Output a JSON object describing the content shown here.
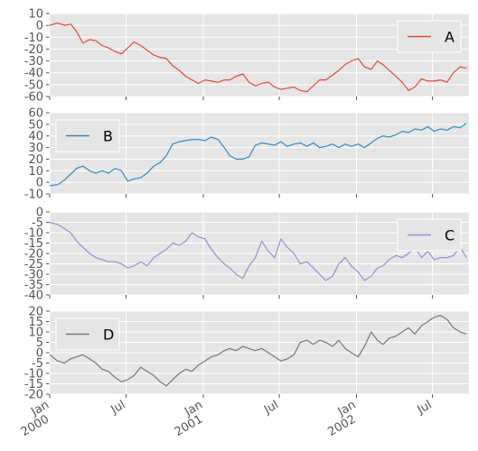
{
  "chart_data": {
    "type": "line",
    "layout": "4 stacked panels sharing a date x-axis",
    "style": {
      "background": "#e5e5e5",
      "grid": true,
      "grid_color": "#ffffff"
    },
    "x_range": [
      "2000-01-01",
      "2002-09-26"
    ],
    "x_ticks": [
      {
        "date": "2000-01-01",
        "label": "Jan",
        "sub": "2000"
      },
      {
        "date": "2000-07-01",
        "label": "Jul",
        "sub": ""
      },
      {
        "date": "2001-01-01",
        "label": "Jan",
        "sub": "2001"
      },
      {
        "date": "2001-07-01",
        "label": "Jul",
        "sub": ""
      },
      {
        "date": "2002-01-01",
        "label": "Jan",
        "sub": "2002"
      },
      {
        "date": "2002-07-01",
        "label": "Jul",
        "sub": ""
      }
    ],
    "panels": [
      {
        "name": "A",
        "color": "#e24a33",
        "legend": "top-right",
        "ylim": [
          -60,
          10
        ],
        "yticks": [
          10,
          0,
          -10,
          -20,
          -30,
          -40,
          -50,
          -60
        ],
        "points": [
          [
            "2000-01-01",
            0
          ],
          [
            "2000-01-20",
            2
          ],
          [
            "2000-02-05",
            0
          ],
          [
            "2000-02-20",
            1
          ],
          [
            "2000-03-05",
            -5
          ],
          [
            "2000-03-20",
            -15
          ],
          [
            "2000-04-05",
            -12
          ],
          [
            "2000-04-20",
            -13
          ],
          [
            "2000-05-05",
            -17
          ],
          [
            "2000-05-20",
            -19
          ],
          [
            "2000-06-05",
            -22
          ],
          [
            "2000-06-20",
            -24
          ],
          [
            "2000-07-05",
            -19
          ],
          [
            "2000-07-20",
            -14
          ],
          [
            "2000-08-05",
            -17
          ],
          [
            "2000-08-20",
            -21
          ],
          [
            "2000-09-05",
            -25
          ],
          [
            "2000-09-20",
            -27
          ],
          [
            "2000-10-05",
            -28
          ],
          [
            "2000-10-20",
            -34
          ],
          [
            "2000-11-05",
            -38
          ],
          [
            "2000-11-20",
            -43
          ],
          [
            "2000-12-05",
            -46
          ],
          [
            "2000-12-20",
            -49
          ],
          [
            "2001-01-05",
            -46
          ],
          [
            "2001-01-20",
            -47
          ],
          [
            "2001-02-05",
            -48
          ],
          [
            "2001-02-20",
            -46
          ],
          [
            "2001-03-05",
            -46
          ],
          [
            "2001-03-20",
            -43
          ],
          [
            "2001-04-05",
            -41
          ],
          [
            "2001-04-20",
            -48
          ],
          [
            "2001-05-05",
            -51
          ],
          [
            "2001-05-20",
            -49
          ],
          [
            "2001-06-05",
            -48
          ],
          [
            "2001-06-20",
            -52
          ],
          [
            "2001-07-05",
            -54
          ],
          [
            "2001-07-20",
            -53
          ],
          [
            "2001-08-05",
            -52
          ],
          [
            "2001-08-20",
            -55
          ],
          [
            "2001-09-05",
            -56
          ],
          [
            "2001-09-20",
            -51
          ],
          [
            "2001-10-05",
            -46
          ],
          [
            "2001-10-20",
            -46
          ],
          [
            "2001-11-05",
            -42
          ],
          [
            "2001-11-20",
            -38
          ],
          [
            "2001-12-05",
            -33
          ],
          [
            "2001-12-20",
            -30
          ],
          [
            "2002-01-05",
            -28
          ],
          [
            "2002-01-20",
            -35
          ],
          [
            "2002-02-05",
            -37
          ],
          [
            "2002-02-20",
            -30
          ],
          [
            "2002-03-05",
            -33
          ],
          [
            "2002-03-20",
            -38
          ],
          [
            "2002-04-05",
            -43
          ],
          [
            "2002-04-20",
            -48
          ],
          [
            "2002-05-05",
            -55
          ],
          [
            "2002-05-20",
            -52
          ],
          [
            "2002-06-05",
            -45
          ],
          [
            "2002-06-20",
            -47
          ],
          [
            "2002-07-05",
            -47
          ],
          [
            "2002-07-20",
            -46
          ],
          [
            "2002-08-05",
            -48
          ],
          [
            "2002-08-20",
            -40
          ],
          [
            "2002-09-05",
            -35
          ],
          [
            "2002-09-20",
            -36
          ]
        ]
      },
      {
        "name": "B",
        "color": "#348abd",
        "legend": "top-left",
        "ylim": [
          -10,
          60
        ],
        "yticks": [
          60,
          50,
          40,
          30,
          20,
          10,
          0,
          -10
        ],
        "points": [
          [
            "2000-01-01",
            -3
          ],
          [
            "2000-01-20",
            -2
          ],
          [
            "2000-02-05",
            2
          ],
          [
            "2000-02-20",
            7
          ],
          [
            "2000-03-05",
            12
          ],
          [
            "2000-03-20",
            14
          ],
          [
            "2000-04-05",
            10
          ],
          [
            "2000-04-20",
            8
          ],
          [
            "2000-05-05",
            10
          ],
          [
            "2000-05-20",
            8
          ],
          [
            "2000-06-05",
            12
          ],
          [
            "2000-06-20",
            10
          ],
          [
            "2000-07-05",
            1
          ],
          [
            "2000-07-20",
            3
          ],
          [
            "2000-08-05",
            4
          ],
          [
            "2000-08-20",
            8
          ],
          [
            "2000-09-05",
            14
          ],
          [
            "2000-09-20",
            17
          ],
          [
            "2000-10-05",
            23
          ],
          [
            "2000-10-20",
            33
          ],
          [
            "2000-11-05",
            35
          ],
          [
            "2000-11-20",
            36
          ],
          [
            "2000-12-05",
            37
          ],
          [
            "2000-12-20",
            37
          ],
          [
            "2001-01-05",
            36
          ],
          [
            "2001-01-20",
            39
          ],
          [
            "2001-02-05",
            37
          ],
          [
            "2001-02-20",
            30
          ],
          [
            "2001-03-05",
            23
          ],
          [
            "2001-03-20",
            20
          ],
          [
            "2001-04-05",
            20
          ],
          [
            "2001-04-20",
            22
          ],
          [
            "2001-05-05",
            32
          ],
          [
            "2001-05-20",
            34
          ],
          [
            "2001-06-05",
            33
          ],
          [
            "2001-06-20",
            32
          ],
          [
            "2001-07-05",
            35
          ],
          [
            "2001-07-20",
            31
          ],
          [
            "2001-08-05",
            33
          ],
          [
            "2001-08-20",
            34
          ],
          [
            "2001-09-05",
            31
          ],
          [
            "2001-09-20",
            34
          ],
          [
            "2001-10-05",
            30
          ],
          [
            "2001-10-20",
            31
          ],
          [
            "2001-11-05",
            33
          ],
          [
            "2001-11-20",
            30
          ],
          [
            "2001-12-05",
            33
          ],
          [
            "2001-12-20",
            31
          ],
          [
            "2002-01-05",
            33
          ],
          [
            "2002-01-20",
            30
          ],
          [
            "2002-02-05",
            34
          ],
          [
            "2002-02-20",
            38
          ],
          [
            "2002-03-05",
            40
          ],
          [
            "2002-03-20",
            39
          ],
          [
            "2002-04-05",
            41
          ],
          [
            "2002-04-20",
            44
          ],
          [
            "2002-05-05",
            43
          ],
          [
            "2002-05-20",
            46
          ],
          [
            "2002-06-05",
            45
          ],
          [
            "2002-06-20",
            48
          ],
          [
            "2002-07-05",
            44
          ],
          [
            "2002-07-20",
            46
          ],
          [
            "2002-08-05",
            45
          ],
          [
            "2002-08-20",
            48
          ],
          [
            "2002-09-05",
            47
          ],
          [
            "2002-09-20",
            51
          ]
        ]
      },
      {
        "name": "C",
        "color": "#988ed5",
        "legend": "top-right",
        "ylim": [
          -40,
          0
        ],
        "yticks": [
          0,
          -5,
          -10,
          -15,
          -20,
          -25,
          -30,
          -35,
          -40
        ],
        "points": [
          [
            "2000-01-01",
            -5
          ],
          [
            "2000-01-20",
            -6
          ],
          [
            "2000-02-05",
            -8
          ],
          [
            "2000-02-20",
            -10
          ],
          [
            "2000-03-05",
            -14
          ],
          [
            "2000-03-20",
            -17
          ],
          [
            "2000-04-05",
            -20
          ],
          [
            "2000-04-20",
            -22
          ],
          [
            "2000-05-05",
            -23
          ],
          [
            "2000-05-20",
            -24
          ],
          [
            "2000-06-05",
            -24
          ],
          [
            "2000-06-20",
            -25
          ],
          [
            "2000-07-05",
            -27
          ],
          [
            "2000-07-20",
            -26
          ],
          [
            "2000-08-05",
            -24
          ],
          [
            "2000-08-20",
            -26
          ],
          [
            "2000-09-05",
            -22
          ],
          [
            "2000-09-20",
            -20
          ],
          [
            "2000-10-05",
            -18
          ],
          [
            "2000-10-20",
            -15
          ],
          [
            "2000-11-05",
            -16
          ],
          [
            "2000-11-20",
            -14
          ],
          [
            "2000-12-05",
            -10
          ],
          [
            "2000-12-20",
            -12
          ],
          [
            "2001-01-05",
            -13
          ],
          [
            "2001-01-20",
            -18
          ],
          [
            "2001-02-05",
            -22
          ],
          [
            "2001-02-20",
            -25
          ],
          [
            "2001-03-05",
            -27
          ],
          [
            "2001-03-20",
            -30
          ],
          [
            "2001-04-05",
            -32
          ],
          [
            "2001-04-20",
            -26
          ],
          [
            "2001-05-05",
            -22
          ],
          [
            "2001-05-20",
            -14
          ],
          [
            "2001-06-05",
            -19
          ],
          [
            "2001-06-20",
            -22
          ],
          [
            "2001-07-05",
            -13
          ],
          [
            "2001-07-20",
            -17
          ],
          [
            "2001-08-05",
            -20
          ],
          [
            "2001-08-20",
            -25
          ],
          [
            "2001-09-05",
            -24
          ],
          [
            "2001-09-20",
            -27
          ],
          [
            "2001-10-05",
            -30
          ],
          [
            "2001-10-20",
            -33
          ],
          [
            "2001-11-05",
            -31
          ],
          [
            "2001-11-20",
            -25
          ],
          [
            "2001-12-05",
            -22
          ],
          [
            "2001-12-20",
            -26
          ],
          [
            "2002-01-05",
            -29
          ],
          [
            "2002-01-20",
            -33
          ],
          [
            "2002-02-05",
            -31
          ],
          [
            "2002-02-20",
            -27
          ],
          [
            "2002-03-05",
            -26
          ],
          [
            "2002-03-20",
            -23
          ],
          [
            "2002-04-05",
            -21
          ],
          [
            "2002-04-20",
            -22
          ],
          [
            "2002-05-05",
            -20
          ],
          [
            "2002-05-20",
            -17
          ],
          [
            "2002-06-05",
            -22
          ],
          [
            "2002-06-20",
            -19
          ],
          [
            "2002-07-05",
            -23
          ],
          [
            "2002-07-20",
            -22
          ],
          [
            "2002-08-05",
            -22
          ],
          [
            "2002-08-20",
            -21
          ],
          [
            "2002-09-05",
            -17
          ],
          [
            "2002-09-20",
            -22
          ]
        ]
      },
      {
        "name": "D",
        "color": "#777777",
        "legend": "top-left",
        "ylim": [
          -20,
          20
        ],
        "yticks": [
          20,
          15,
          10,
          5,
          0,
          -5,
          -10,
          -15,
          -20
        ],
        "points": [
          [
            "2000-01-01",
            -1
          ],
          [
            "2000-01-20",
            -4
          ],
          [
            "2000-02-05",
            -5
          ],
          [
            "2000-02-20",
            -3
          ],
          [
            "2000-03-05",
            -2
          ],
          [
            "2000-03-20",
            -1
          ],
          [
            "2000-04-05",
            -3
          ],
          [
            "2000-04-20",
            -5
          ],
          [
            "2000-05-05",
            -8
          ],
          [
            "2000-05-20",
            -9
          ],
          [
            "2000-06-05",
            -12
          ],
          [
            "2000-06-20",
            -14
          ],
          [
            "2000-07-05",
            -13
          ],
          [
            "2000-07-20",
            -11
          ],
          [
            "2000-08-05",
            -7
          ],
          [
            "2000-08-20",
            -9
          ],
          [
            "2000-09-05",
            -11
          ],
          [
            "2000-09-20",
            -14
          ],
          [
            "2000-10-05",
            -16
          ],
          [
            "2000-10-20",
            -13
          ],
          [
            "2000-11-05",
            -10
          ],
          [
            "2000-11-20",
            -8
          ],
          [
            "2000-12-05",
            -9
          ],
          [
            "2000-12-20",
            -6
          ],
          [
            "2001-01-05",
            -4
          ],
          [
            "2001-01-20",
            -2
          ],
          [
            "2001-02-05",
            -1
          ],
          [
            "2001-02-20",
            1
          ],
          [
            "2001-03-05",
            2
          ],
          [
            "2001-03-20",
            1
          ],
          [
            "2001-04-05",
            3
          ],
          [
            "2001-04-20",
            2
          ],
          [
            "2001-05-05",
            1
          ],
          [
            "2001-05-20",
            2
          ],
          [
            "2001-06-05",
            0
          ],
          [
            "2001-06-20",
            -2
          ],
          [
            "2001-07-05",
            -4
          ],
          [
            "2001-07-20",
            -3
          ],
          [
            "2001-08-05",
            -1
          ],
          [
            "2001-08-20",
            5
          ],
          [
            "2001-09-05",
            6
          ],
          [
            "2001-09-20",
            4
          ],
          [
            "2001-10-05",
            6
          ],
          [
            "2001-10-20",
            5
          ],
          [
            "2001-11-05",
            3
          ],
          [
            "2001-11-20",
            6
          ],
          [
            "2001-12-05",
            2
          ],
          [
            "2001-12-20",
            0
          ],
          [
            "2002-01-05",
            -2
          ],
          [
            "2002-01-20",
            3
          ],
          [
            "2002-02-05",
            10
          ],
          [
            "2002-02-20",
            6
          ],
          [
            "2002-03-05",
            4
          ],
          [
            "2002-03-20",
            7
          ],
          [
            "2002-04-05",
            8
          ],
          [
            "2002-04-20",
            10
          ],
          [
            "2002-05-05",
            12
          ],
          [
            "2002-05-20",
            9
          ],
          [
            "2002-06-05",
            13
          ],
          [
            "2002-06-20",
            15
          ],
          [
            "2002-07-05",
            17
          ],
          [
            "2002-07-20",
            18
          ],
          [
            "2002-08-05",
            16
          ],
          [
            "2002-08-20",
            12
          ],
          [
            "2002-09-05",
            10
          ],
          [
            "2002-09-20",
            9
          ]
        ]
      }
    ]
  }
}
